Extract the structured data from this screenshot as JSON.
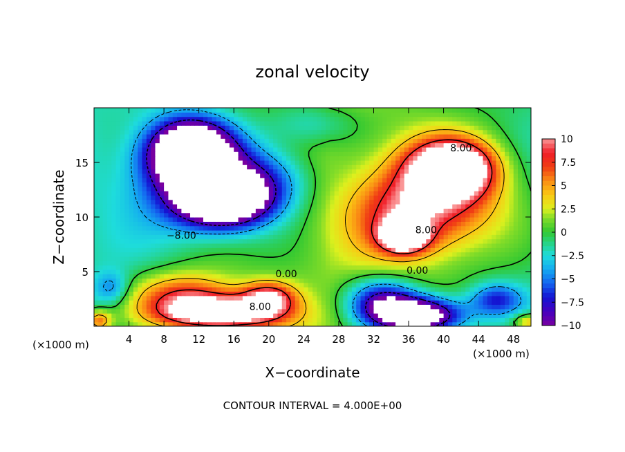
{
  "chart_data": {
    "type": "heatmap",
    "title": "zonal velocity",
    "xlabel": "X−coordinate",
    "ylabel": "Z−coordinate",
    "x_unit_left": "(×1000 m)",
    "x_unit_right": "(×1000 m)",
    "footer": "CONTOUR INTERVAL = 4.000E+00",
    "xlim": [
      0,
      50
    ],
    "ylim": [
      0,
      20
    ],
    "x_ticks": [
      4,
      8,
      12,
      16,
      20,
      24,
      28,
      32,
      36,
      40,
      44,
      48
    ],
    "y_ticks": [
      5,
      10,
      15
    ],
    "color_range": [
      -10,
      10
    ],
    "colorbar_ticks": [
      "10",
      "7.5",
      "5",
      "2.5",
      "0",
      "−2.5",
      "−5",
      "−7.5",
      "−10"
    ],
    "contour_labels": [
      {
        "text": "8.00",
        "x": 42.0,
        "y": 16.0
      },
      {
        "text": "8.00",
        "x": 38.0,
        "y": 8.5
      },
      {
        "text": "−8.00",
        "x": 10.0,
        "y": 8.0
      },
      {
        "text": "0.00",
        "x": 22.0,
        "y": 4.5
      },
      {
        "text": "0.00",
        "x": 37.0,
        "y": 4.8
      },
      {
        "text": "8.00",
        "x": 19.0,
        "y": 1.5
      }
    ],
    "features": [
      {
        "sign": "negative",
        "x": 11.0,
        "y": 16.0,
        "sx": 4.5,
        "sy": 2.8,
        "amp": -16
      },
      {
        "sign": "negative",
        "x": 15.0,
        "y": 11.5,
        "sx": 5.0,
        "sy": 2.4,
        "amp": -14
      },
      {
        "sign": "negative",
        "x": 12.0,
        "y": 13.5,
        "sx": 7.0,
        "sy": 4.5,
        "amp": -8
      },
      {
        "sign": "negative",
        "x": 20.0,
        "y": 13.5,
        "sx": 5.0,
        "sy": 3.0,
        "amp": -5
      },
      {
        "sign": "positive",
        "x": 41.0,
        "y": 14.5,
        "sx": 4.5,
        "sy": 2.4,
        "amp": 14
      },
      {
        "sign": "positive",
        "x": 40.0,
        "y": 12.0,
        "sx": 7.5,
        "sy": 5.0,
        "amp": 8
      },
      {
        "sign": "positive",
        "x": 35.5,
        "y": 8.3,
        "sx": 2.5,
        "sy": 1.4,
        "amp": 13
      },
      {
        "sign": "positive",
        "x": 35.0,
        "y": 10.0,
        "sx": 6.0,
        "sy": 4.0,
        "amp": 5
      },
      {
        "sign": "positive",
        "x": 14.0,
        "y": 1.2,
        "sx": 7.0,
        "sy": 1.6,
        "amp": 14
      },
      {
        "sign": "positive",
        "x": 10.0,
        "y": 3.0,
        "sx": 6.0,
        "sy": 2.0,
        "amp": 7
      },
      {
        "sign": "positive",
        "x": 20.0,
        "y": 2.6,
        "sx": 3.0,
        "sy": 1.5,
        "amp": 9
      },
      {
        "sign": "negative",
        "x": 37.0,
        "y": 1.0,
        "sx": 5.0,
        "sy": 1.6,
        "amp": -15
      },
      {
        "sign": "negative",
        "x": 33.0,
        "y": 2.5,
        "sx": 4.0,
        "sy": 2.0,
        "amp": -8
      },
      {
        "sign": "negative",
        "x": 46.0,
        "y": 2.5,
        "sx": 3.0,
        "sy": 1.5,
        "amp": -6
      },
      {
        "sign": "positive",
        "x": 50.0,
        "y": 0.4,
        "sx": 2.0,
        "sy": 0.8,
        "amp": 6
      },
      {
        "sign": "positive",
        "x": 0.5,
        "y": 0.5,
        "sx": 1.5,
        "sy": 1.0,
        "amp": 7
      },
      {
        "sign": "negative",
        "x": 25.0,
        "y": 18.5,
        "sx": 5.0,
        "sy": 2.0,
        "amp": -3
      },
      {
        "sign": "negative",
        "x": 2.0,
        "y": 3.5,
        "sx": 2.0,
        "sy": 1.5,
        "amp": -4
      }
    ]
  }
}
